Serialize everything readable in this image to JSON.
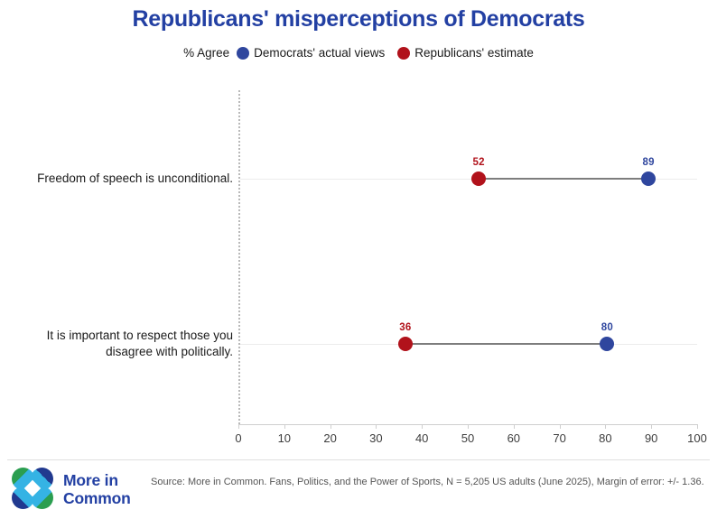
{
  "title": "Republicans' misperceptions of Democrats",
  "colors": {
    "title_blue": "#2340a3",
    "democrat_blue": "#2f469e",
    "republican_red": "#b1121b",
    "connector_gray": "#7d7d7d",
    "logo_green": "#2b9e50",
    "logo_navy": "#21398f",
    "logo_cyan": "#35b3e4"
  },
  "legend": {
    "prefix": "% Agree",
    "items": [
      {
        "label": "Democrats' actual views",
        "color": "#2f469e"
      },
      {
        "label": "Republicans' estimate",
        "color": "#b1121b"
      }
    ]
  },
  "chart_data": {
    "type": "scatter",
    "subtype": "dumbbell",
    "categories": [
      "Freedom of speech is unconditional.",
      "It is important to respect those you disagree with politically."
    ],
    "series": [
      {
        "name": "Democrats' actual views",
        "color": "#2f469e",
        "values": [
          89,
          80
        ]
      },
      {
        "name": "Republicans' estimate",
        "color": "#b1121b",
        "values": [
          52,
          36
        ]
      }
    ],
    "title": "Republicans' misperceptions of Democrats",
    "xlabel": "% Agree",
    "ylabel": "",
    "xlim": [
      0,
      100
    ],
    "x_ticks": [
      0,
      10,
      20,
      30,
      40,
      50,
      60,
      70,
      80,
      90,
      100
    ],
    "grid": "horizontal-row-lines",
    "legend_position": "top"
  },
  "footer": {
    "wordmark": "More in Common",
    "source": "Source: More in Common. Fans, Politics, and the Power of Sports, N = 5,205 US adults (June 2025), Margin of error: +/- 1.36."
  }
}
